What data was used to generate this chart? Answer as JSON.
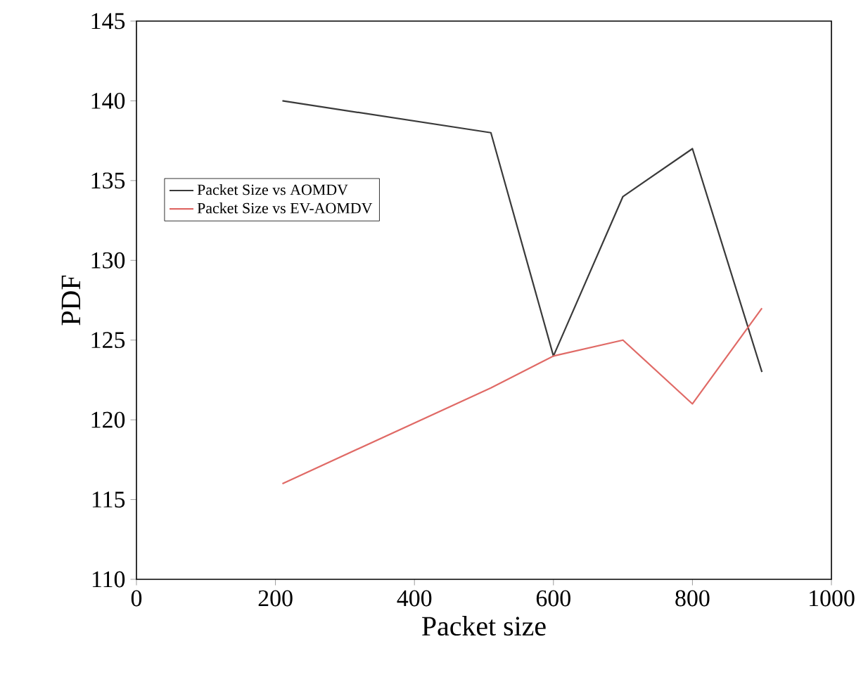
{
  "chart_data": {
    "type": "line",
    "xlabel": "Packet size",
    "ylabel": "PDF",
    "xlim": [
      0,
      1000
    ],
    "xticks": [
      0,
      200,
      400,
      600,
      800,
      1000
    ],
    "ylim": [
      110,
      145
    ],
    "yticks": [
      110,
      115,
      120,
      125,
      130,
      135,
      140,
      145
    ],
    "grid": false,
    "legend": "left",
    "marker": "none",
    "line_style": "solid",
    "series": [
      {
        "name": "Packet Size vs AOMDV",
        "color": "#3a3a3a",
        "x": [
          210,
          510,
          600,
          700,
          800,
          900
        ],
        "values": [
          140,
          138,
          124,
          134,
          137,
          123
        ]
      },
      {
        "name": "Packet Size vs EV-AOMDV",
        "color": "#e06a66",
        "x": [
          210,
          510,
          600,
          700,
          800,
          900
        ],
        "values": [
          116,
          122,
          124,
          125,
          121,
          127
        ]
      }
    ]
  }
}
